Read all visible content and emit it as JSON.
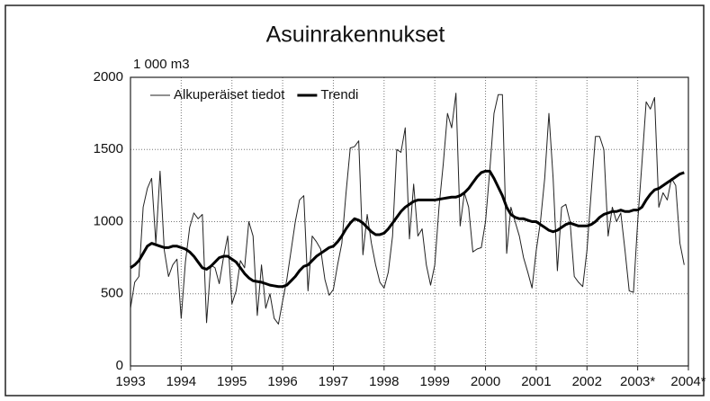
{
  "chart_data": {
    "type": "line",
    "title": "Asuinrakennukset",
    "y_label": "1 000 m3",
    "x": [
      1993,
      1993.083,
      1993.167,
      1993.25,
      1993.333,
      1993.417,
      1993.5,
      1993.583,
      1993.667,
      1993.75,
      1993.833,
      1993.917,
      1994,
      1994.083,
      1994.167,
      1994.25,
      1994.333,
      1994.417,
      1994.5,
      1994.583,
      1994.667,
      1994.75,
      1994.833,
      1994.917,
      1995,
      1995.083,
      1995.167,
      1995.25,
      1995.333,
      1995.417,
      1995.5,
      1995.583,
      1995.667,
      1995.75,
      1995.833,
      1995.917,
      1996,
      1996.083,
      1996.167,
      1996.25,
      1996.333,
      1996.417,
      1996.5,
      1996.583,
      1996.667,
      1996.75,
      1996.833,
      1996.917,
      1997,
      1997.083,
      1997.167,
      1997.25,
      1997.333,
      1997.417,
      1997.5,
      1997.583,
      1997.667,
      1997.75,
      1997.833,
      1997.917,
      1998,
      1998.083,
      1998.167,
      1998.25,
      1998.333,
      1998.417,
      1998.5,
      1998.583,
      1998.667,
      1998.75,
      1998.833,
      1998.917,
      1999,
      1999.083,
      1999.167,
      1999.25,
      1999.333,
      1999.417,
      1999.5,
      1999.583,
      1999.667,
      1999.75,
      1999.833,
      1999.917,
      2000,
      2000.083,
      2000.167,
      2000.25,
      2000.333,
      2000.417,
      2000.5,
      2000.583,
      2000.667,
      2000.75,
      2000.833,
      2000.917,
      2001,
      2001.083,
      2001.167,
      2001.25,
      2001.333,
      2001.417,
      2001.5,
      2001.583,
      2001.667,
      2001.75,
      2001.833,
      2001.917,
      2002,
      2002.083,
      2002.167,
      2002.25,
      2002.333,
      2002.417,
      2002.5,
      2002.583,
      2002.667,
      2002.75,
      2002.833,
      2002.917,
      2003,
      2003.083,
      2003.167,
      2003.25,
      2003.333,
      2003.417,
      2003.5,
      2003.583,
      2003.667,
      2003.75,
      2003.833,
      2003.917
    ],
    "series": [
      {
        "name": "Alkuperäiset tiedot",
        "color": "#222222",
        "width": 1,
        "values": [
          400,
          580,
          620,
          1100,
          1230,
          1300,
          850,
          1350,
          800,
          620,
          700,
          740,
          330,
          720,
          960,
          1060,
          1020,
          1050,
          300,
          700,
          680,
          570,
          750,
          900,
          430,
          520,
          730,
          680,
          1000,
          900,
          350,
          700,
          400,
          500,
          330,
          290,
          450,
          600,
          800,
          1000,
          1150,
          1180,
          520,
          900,
          860,
          810,
          600,
          490,
          530,
          700,
          850,
          1200,
          1510,
          1520,
          1560,
          770,
          1050,
          850,
          700,
          580,
          540,
          650,
          900,
          1500,
          1480,
          1650,
          880,
          1260,
          900,
          950,
          700,
          560,
          700,
          1100,
          1400,
          1750,
          1650,
          1890,
          970,
          1200,
          1100,
          790,
          810,
          820,
          1000,
          1350,
          1750,
          1880,
          1880,
          780,
          1100,
          1000,
          900,
          750,
          650,
          540,
          800,
          1000,
          1300,
          1750,
          1300,
          660,
          1100,
          1120,
          1000,
          620,
          580,
          550,
          800,
          1200,
          1590,
          1590,
          1500,
          900,
          1100,
          1000,
          1060,
          800,
          520,
          510,
          1000,
          1400,
          1830,
          1780,
          1860,
          1100,
          1200,
          1150,
          1300,
          1250,
          850,
          700
        ]
      },
      {
        "name": "Trendi",
        "color": "#000000",
        "width": 3,
        "values": [
          680,
          700,
          730,
          780,
          830,
          850,
          840,
          830,
          820,
          820,
          830,
          830,
          820,
          810,
          790,
          760,
          720,
          680,
          670,
          690,
          720,
          750,
          760,
          760,
          740,
          720,
          680,
          640,
          610,
          590,
          585,
          580,
          570,
          560,
          555,
          550,
          550,
          560,
          590,
          620,
          660,
          690,
          700,
          730,
          760,
          780,
          800,
          820,
          830,
          860,
          900,
          950,
          990,
          1020,
          1010,
          990,
          960,
          930,
          910,
          910,
          920,
          950,
          990,
          1030,
          1070,
          1100,
          1120,
          1140,
          1150,
          1150,
          1150,
          1150,
          1150,
          1155,
          1160,
          1165,
          1170,
          1170,
          1180,
          1200,
          1230,
          1270,
          1310,
          1340,
          1350,
          1350,
          1300,
          1240,
          1180,
          1100,
          1050,
          1030,
          1020,
          1020,
          1010,
          1000,
          1000,
          980,
          960,
          940,
          930,
          940,
          960,
          980,
          990,
          980,
          970,
          970,
          970,
          980,
          1000,
          1030,
          1050,
          1060,
          1070,
          1070,
          1080,
          1070,
          1070,
          1080,
          1080,
          1100,
          1150,
          1190,
          1220,
          1230,
          1250,
          1270,
          1290,
          1310,
          1330,
          1340
        ]
      }
    ],
    "xlim": [
      1993,
      2004
    ],
    "xticks": [
      1993,
      1994,
      1995,
      1996,
      1997,
      1998,
      1999,
      2000,
      2001,
      2002,
      {
        "value": 2003,
        "label": "2003*"
      },
      {
        "value": 2004,
        "label": "2004*"
      }
    ],
    "ylim": [
      0,
      2000
    ],
    "yticks": [
      0,
      500,
      1000,
      1500,
      2000
    ],
    "grid": true,
    "legend": "top-left"
  }
}
